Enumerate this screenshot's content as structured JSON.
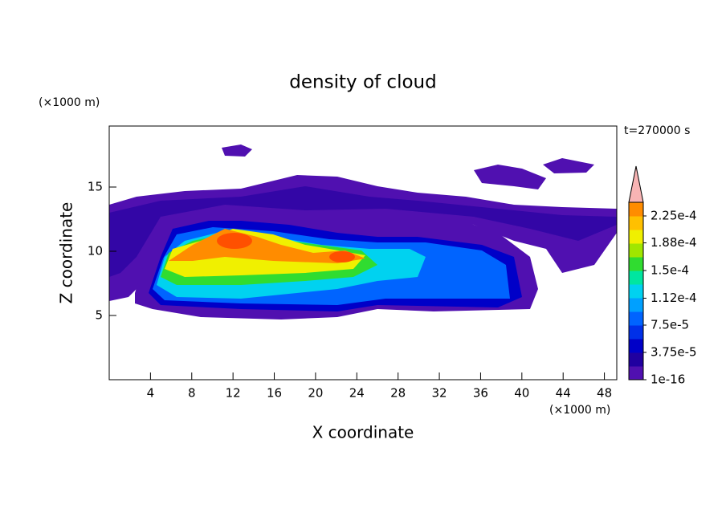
{
  "chart_data": {
    "type": "contour",
    "title": "density of cloud",
    "x_label": "X coordinate",
    "y_label": "Z coordinate",
    "x_unit": "(×1000 m)",
    "y_unit": "(×1000 m)",
    "annotation": "t=270000 s",
    "xlim": [
      0,
      49.2
    ],
    "ylim": [
      0,
      19.75
    ],
    "xticks": [
      4,
      8,
      12,
      16,
      20,
      24,
      28,
      32,
      36,
      40,
      44,
      48
    ],
    "yticks": [
      5,
      10,
      15
    ],
    "clim": [
      1e-16,
      0.00024375
    ],
    "cticks": [
      {
        "value": 1e-16,
        "label": "1e-16"
      },
      {
        "value": 3.75e-05,
        "label": "3.75e-5"
      },
      {
        "value": 7.5e-05,
        "label": "7.5e-5"
      },
      {
        "value": 0.000112,
        "label": "1.12e-4"
      },
      {
        "value": 0.00015,
        "label": "1.5e-4"
      },
      {
        "value": 0.000188,
        "label": "1.88e-4"
      },
      {
        "value": 0.000225,
        "label": "2.25e-4"
      }
    ],
    "colors": [
      "#5010b0",
      "#2000a0",
      "#0000c8",
      "#0030e8",
      "#0064ff",
      "#00a0ff",
      "#00d2f0",
      "#00e6a0",
      "#30dc30",
      "#a0e600",
      "#f0f000",
      "#ffc000",
      "#ff8c00",
      "#ff5000",
      "#e81400"
    ],
    "over_color": "#f8b4b4"
  }
}
